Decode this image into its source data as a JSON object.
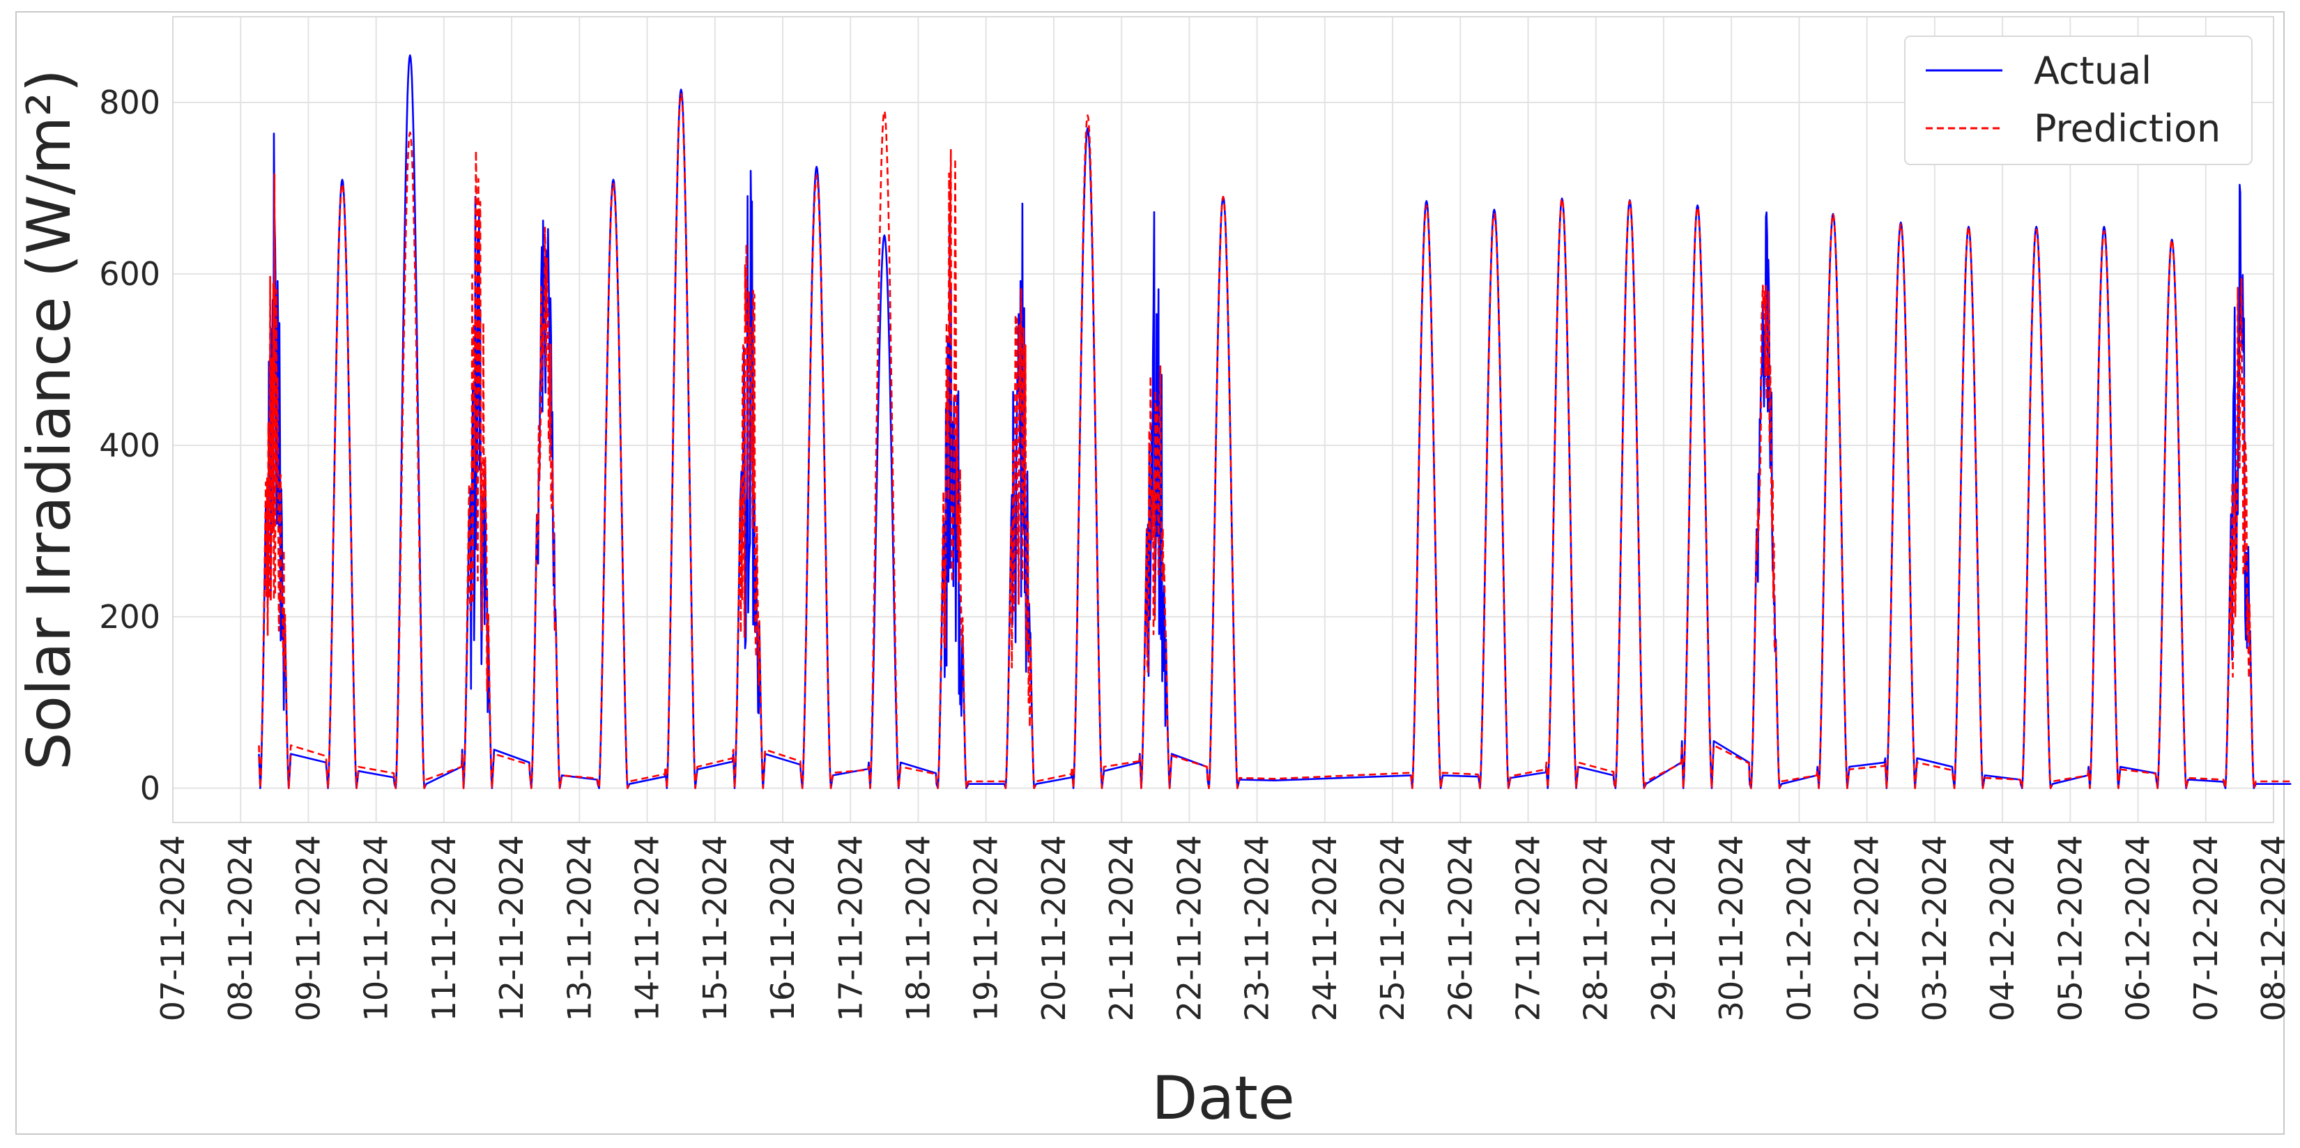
{
  "chart_data": {
    "type": "line",
    "title": "",
    "xlabel": "Date",
    "ylabel": "Solar Irradiance (W/m²)",
    "x_tick_labels": [
      "07-11-2024",
      "08-11-2024",
      "09-11-2024",
      "10-11-2024",
      "11-11-2024",
      "12-11-2024",
      "13-11-2024",
      "14-11-2024",
      "15-11-2024",
      "16-11-2024",
      "17-11-2024",
      "18-11-2024",
      "19-11-2024",
      "20-11-2024",
      "21-11-2024",
      "22-11-2024",
      "23-11-2024",
      "24-11-2024",
      "25-11-2024",
      "26-11-2024",
      "27-11-2024",
      "28-11-2024",
      "29-11-2024",
      "30-11-2024",
      "01-12-2024",
      "02-12-2024",
      "03-12-2024",
      "04-12-2024",
      "05-12-2024",
      "06-12-2024",
      "07-12-2024",
      "08-12-2024"
    ],
    "y_ticks": [
      0,
      200,
      400,
      600,
      800
    ],
    "xlim": [
      "07-11-2024",
      "08-12-2024"
    ],
    "ylim": [
      -40,
      900
    ],
    "grid": true,
    "legend_position": "top-right",
    "series": [
      {
        "name": "Actual",
        "color": "#0000ff",
        "style": "solid",
        "days": [
          "08-11-2024",
          "09-11-2024",
          "10-11-2024",
          "11-11-2024",
          "12-11-2024",
          "13-11-2024",
          "14-11-2024",
          "15-11-2024",
          "16-11-2024",
          "17-11-2024",
          "18-11-2024",
          "19-11-2024",
          "20-11-2024",
          "21-11-2024",
          "22-11-2024",
          "23-11-2024",
          "25-11-2024",
          "26-11-2024",
          "27-11-2024",
          "28-11-2024",
          "29-11-2024",
          "30-11-2024",
          "01-12-2024",
          "02-12-2024",
          "03-12-2024",
          "04-12-2024",
          "05-12-2024",
          "06-12-2024",
          "07-12-2024"
        ],
        "daily_peak": [
          760,
          710,
          855,
          725,
          728,
          710,
          815,
          755,
          725,
          645,
          710,
          720,
          770,
          690,
          690,
          0,
          685,
          675,
          688,
          686,
          680,
          690,
          670,
          660,
          655,
          655,
          655,
          640,
          730
        ],
        "night_level": [
          40,
          20,
          5,
          45,
          15,
          5,
          22,
          40,
          15,
          30,
          5,
          5,
          20,
          40,
          10,
          8,
          15,
          12,
          25,
          5,
          55,
          5,
          25,
          35,
          15,
          5,
          25,
          10,
          5
        ]
      },
      {
        "name": "Prediction",
        "color": "#ff0000",
        "style": "dashed",
        "days": [
          "08-11-2024",
          "09-11-2024",
          "10-11-2024",
          "11-11-2024",
          "12-11-2024",
          "13-11-2024",
          "14-11-2024",
          "15-11-2024",
          "16-11-2024",
          "17-11-2024",
          "18-11-2024",
          "19-11-2024",
          "20-11-2024",
          "21-11-2024",
          "22-11-2024",
          "23-11-2024",
          "25-11-2024",
          "26-11-2024",
          "27-11-2024",
          "28-11-2024",
          "29-11-2024",
          "30-11-2024",
          "01-12-2024",
          "02-12-2024",
          "03-12-2024",
          "04-12-2024",
          "05-12-2024",
          "06-12-2024",
          "07-12-2024"
        ],
        "daily_peak": [
          815,
          705,
          765,
          810,
          715,
          705,
          810,
          775,
          715,
          790,
          790,
          700,
          785,
          690,
          690,
          0,
          680,
          670,
          688,
          685,
          678,
          670,
          670,
          658,
          655,
          652,
          650,
          640,
          665
        ],
        "night_level": [
          50,
          25,
          10,
          40,
          15,
          8,
          25,
          45,
          18,
          25,
          8,
          8,
          25,
          38,
          12,
          10,
          18,
          14,
          30,
          8,
          50,
          8,
          22,
          30,
          12,
          8,
          22,
          12,
          8
        ]
      }
    ]
  }
}
